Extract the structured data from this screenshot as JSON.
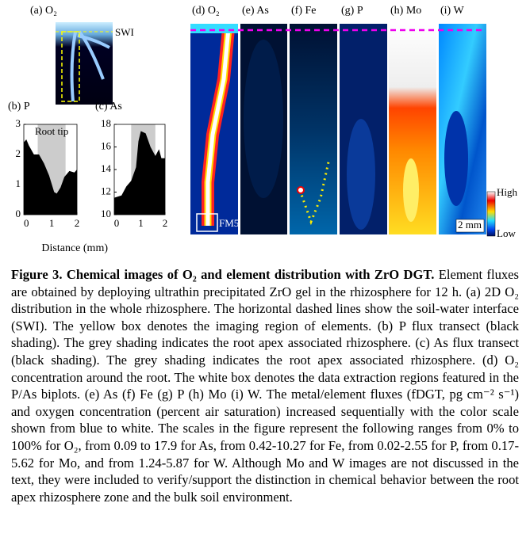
{
  "figure": {
    "panel_a": "(a) O₂",
    "swi": "SWI",
    "image_panels": [
      "(d) O₂",
      "(e) As",
      "(f) Fe",
      "(g) P",
      "(h) Mo",
      "(i) W"
    ],
    "fm5": "FM5",
    "scale_high": "High",
    "scale_low": "Low",
    "scale_bar": "2 mm",
    "shared_xlabel": "Distance (mm)"
  },
  "chart_data": [
    {
      "type": "area",
      "title": "(b) P",
      "color": "#000000",
      "shade_color": "#cccccc",
      "shade": [
        0.45,
        1.55
      ],
      "shade_label": "Root tip",
      "x": [
        -0.1,
        0.0,
        0.1,
        0.3,
        0.5,
        0.7,
        0.9,
        1.1,
        1.2,
        1.35,
        1.5,
        1.7,
        1.9,
        2.0
      ],
      "values": [
        2.4,
        2.5,
        2.3,
        2.0,
        2.0,
        1.7,
        1.3,
        0.75,
        0.7,
        0.9,
        1.25,
        1.45,
        1.4,
        1.5
      ],
      "xlim": [
        -0.1,
        2.0
      ],
      "xticks": [
        0,
        1,
        2
      ],
      "ylim": [
        0,
        3
      ],
      "yticks": [
        0,
        1,
        2,
        3
      ]
    },
    {
      "type": "area",
      "title": "(c) As",
      "color": "#000000",
      "shade_color": "#cccccc",
      "shade": [
        0.6,
        1.6
      ],
      "x": [
        -0.1,
        0.2,
        0.4,
        0.6,
        0.8,
        0.9,
        1.0,
        1.2,
        1.4,
        1.6,
        1.75,
        1.85,
        2.0
      ],
      "values": [
        11.5,
        11.7,
        12.5,
        13.0,
        14.2,
        16.5,
        17.4,
        17.2,
        16.0,
        15.2,
        15.8,
        15.0,
        15.0
      ],
      "xlim": [
        -0.1,
        2.0
      ],
      "xticks": [
        0,
        1,
        2
      ],
      "ylim": [
        10,
        18
      ],
      "yticks": [
        10,
        12,
        14,
        16,
        18
      ]
    }
  ],
  "caption": {
    "title": "Figure 3. Chemical images of O₂ and element distribution with ZrO DGT.",
    "body": "Element fluxes are obtained by deploying ultrathin precipitated ZrO gel in the rhizosphere for 12 h. (a) 2D O₂ distribution in the whole rhizosphere. The horizontal dashed lines show the soil-water interface (SWI). The yellow box denotes the imaging region of elements. (b) P flux transect (black shading). The grey shading indicates the root apex associated rhizosphere. (c) As flux transect (black shading). The grey shading indicates the root apex associated rhizosphere. (d) O₂ concentration around the root. The white box denotes the data extraction regions featured in the P/As biplots. (e) As (f) Fe (g) P (h) Mo (i) W. The metal/element fluxes (fDGT, pg cm⁻² s⁻¹) and oxygen concentration (percent air saturation) increased sequentially with the color scale shown from blue to white. The scales in the figure represent the following ranges from 0% to 100% for O₂, from 0.09 to 17.9 for As, from 0.42-10.27 for Fe, from 0.02-2.55 for P, from 0.17-5.62 for Mo, and from 1.24-5.87 for W. Although Mo and W images are not discussed in the text, they were included to verify/support the distinction in chemical behavior between the root apex rhizosphere zone and the bulk soil environment."
  }
}
